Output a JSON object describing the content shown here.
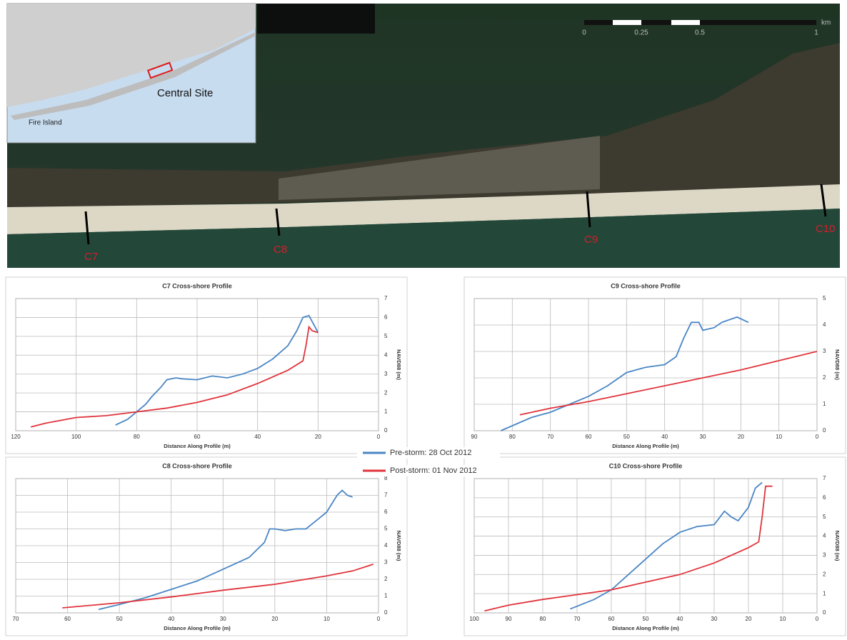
{
  "map": {
    "inset_labels": [
      "Central Site",
      "Fire Island"
    ],
    "transects": [
      "C7",
      "C8",
      "C9",
      "C10"
    ],
    "scale": {
      "ticks": [
        "0",
        "0.25",
        "0.5",
        "1"
      ],
      "unit": "km"
    }
  },
  "legend": [
    {
      "name": "Pre-storm: 28 Oct 2012",
      "color": "#4a86c5"
    },
    {
      "name": "Post-storm: 01 Nov 2012",
      "color": "#e0343c"
    }
  ],
  "chart_data": [
    {
      "type": "line",
      "title": "C7 Cross-shore Profile",
      "x_label": "Distance Along Profile (m)",
      "y_label": "NAVD88 (m)",
      "xlim": [
        120,
        0
      ],
      "xticks": [
        120,
        100,
        80,
        60,
        40,
        20,
        0
      ],
      "ylim": [
        0,
        7
      ],
      "yticks": [
        0,
        1,
        2,
        3,
        4,
        5,
        6,
        7
      ],
      "grid": true,
      "series": [
        {
          "color": "#4a86c5",
          "x": [
            87,
            83,
            80,
            77,
            75,
            72,
            70,
            67,
            65,
            60,
            55,
            50,
            45,
            40,
            35,
            30,
            27,
            25,
            23,
            21,
            20
          ],
          "values": [
            0.3,
            0.6,
            1.0,
            1.4,
            1.8,
            2.3,
            2.7,
            2.8,
            2.75,
            2.7,
            2.9,
            2.8,
            3.0,
            3.3,
            3.8,
            4.5,
            5.3,
            6.0,
            6.1,
            5.5,
            5.2
          ]
        },
        {
          "color": "#e0343c",
          "x": [
            115,
            110,
            100,
            90,
            80,
            70,
            60,
            50,
            40,
            30,
            25,
            24,
            23,
            22,
            20
          ],
          "values": [
            0.2,
            0.4,
            0.7,
            0.8,
            1.0,
            1.2,
            1.5,
            1.9,
            2.5,
            3.2,
            3.7,
            4.5,
            5.5,
            5.3,
            5.2
          ]
        }
      ]
    },
    {
      "type": "line",
      "title": "C9 Cross-shore Profile",
      "x_label": "Distance Along Profile (m)",
      "y_label": "NAVD88 (m)",
      "xlim": [
        90,
        0
      ],
      "xticks": [
        90,
        80,
        70,
        60,
        50,
        40,
        30,
        20,
        10,
        0
      ],
      "ylim": [
        0,
        5
      ],
      "yticks": [
        0,
        1,
        2,
        3,
        4,
        5
      ],
      "grid": true,
      "series": [
        {
          "color": "#4a86c5",
          "x": [
            83,
            75,
            70,
            65,
            60,
            55,
            50,
            45,
            40,
            37,
            35,
            33,
            31,
            30,
            27,
            25,
            21,
            18
          ],
          "values": [
            0,
            0.5,
            0.7,
            1.0,
            1.3,
            1.7,
            2.2,
            2.4,
            2.5,
            2.8,
            3.5,
            4.1,
            4.1,
            3.8,
            3.9,
            4.1,
            4.3,
            4.1
          ]
        },
        {
          "color": "#e0343c",
          "x": [
            78,
            70,
            60,
            50,
            40,
            30,
            20,
            10,
            0
          ],
          "values": [
            0.6,
            0.85,
            1.1,
            1.4,
            1.7,
            2.0,
            2.3,
            2.65,
            3.0
          ]
        }
      ]
    },
    {
      "type": "line",
      "title": "C8 Cross-shore Profile",
      "x_label": "Distance Along Profile (m)",
      "y_label": "NAVD88 (m)",
      "xlim": [
        70,
        0
      ],
      "xticks": [
        70,
        60,
        50,
        40,
        30,
        20,
        10,
        0
      ],
      "ylim": [
        0,
        8
      ],
      "yticks": [
        0,
        1,
        2,
        3,
        4,
        5,
        6,
        7,
        8
      ],
      "grid": true,
      "series": [
        {
          "color": "#4a86c5",
          "x": [
            54,
            50,
            45,
            40,
            35,
            30,
            25,
            22,
            21,
            20,
            18,
            16,
            14,
            12,
            10,
            8,
            7,
            6,
            5
          ],
          "values": [
            0.2,
            0.5,
            0.9,
            1.4,
            1.9,
            2.6,
            3.3,
            4.2,
            5.0,
            5.0,
            4.9,
            5.0,
            5.0,
            5.5,
            6.0,
            7.0,
            7.3,
            7.0,
            6.9
          ]
        },
        {
          "color": "#e0343c",
          "x": [
            61,
            50,
            40,
            30,
            20,
            10,
            5,
            1
          ],
          "values": [
            0.3,
            0.6,
            0.95,
            1.35,
            1.7,
            2.2,
            2.5,
            2.9
          ]
        }
      ]
    },
    {
      "type": "line",
      "title": "C10 Cross-shore Profile",
      "x_label": "Distance Along Profile (m)",
      "y_label": "NAVD88 (m)",
      "xlim": [
        100,
        0
      ],
      "xticks": [
        100,
        90,
        80,
        70,
        60,
        50,
        40,
        30,
        20,
        10,
        0
      ],
      "ylim": [
        0,
        7
      ],
      "yticks": [
        0,
        1,
        2,
        3,
        4,
        5,
        6,
        7
      ],
      "grid": true,
      "series": [
        {
          "color": "#4a86c5",
          "x": [
            72,
            65,
            60,
            55,
            50,
            45,
            40,
            35,
            30,
            27,
            25,
            23,
            20,
            18,
            16
          ],
          "values": [
            0.2,
            0.7,
            1.2,
            2.0,
            2.8,
            3.6,
            4.2,
            4.5,
            4.6,
            5.3,
            5.0,
            4.8,
            5.5,
            6.5,
            6.8
          ]
        },
        {
          "color": "#e0343c",
          "x": [
            97,
            90,
            80,
            70,
            60,
            50,
            40,
            30,
            20,
            17,
            16,
            15,
            13
          ],
          "values": [
            0.1,
            0.4,
            0.7,
            0.95,
            1.2,
            1.6,
            2.0,
            2.6,
            3.4,
            3.7,
            5.0,
            6.6,
            6.6
          ]
        }
      ]
    }
  ]
}
